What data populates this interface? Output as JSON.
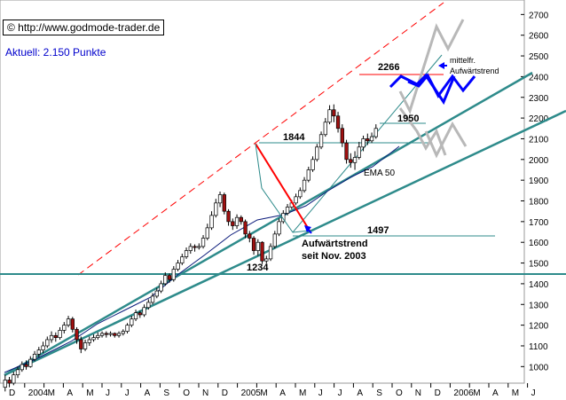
{
  "header": {
    "credit": "© http://www.godmode-trader.de",
    "aktuell": "Aktuell: 2.150 Punkte"
  },
  "chart_data": {
    "type": "candlestick",
    "yticks": [
      1000,
      1100,
      1200,
      1300,
      1400,
      1500,
      1600,
      1700,
      1800,
      1900,
      2000,
      2100,
      2200,
      2300,
      2400,
      2500,
      2600,
      2700
    ],
    "ylim": [
      920,
      2770
    ],
    "xlabels": [
      "D",
      "2004",
      "M",
      "A",
      "M",
      "J",
      "J",
      "A",
      "S",
      "O",
      "N",
      "D",
      "2005",
      "M",
      "A",
      "M",
      "J",
      "J",
      "A",
      "S",
      "O",
      "N",
      "D",
      "2006",
      "M",
      "A",
      "M",
      "J"
    ],
    "levels": [
      {
        "label": "2266",
        "value": 2266
      },
      {
        "label": "1950",
        "value": 1950
      },
      {
        "label": "1844",
        "value": 1844
      },
      {
        "label": "1497",
        "value": 1497
      },
      {
        "label": "1234",
        "value": 1234
      }
    ],
    "annotations": {
      "mittelfr": "mittelfr.",
      "aufwaertstrend_right": "Aufwärtstrend",
      "ema": "EMA 50",
      "trend_line1": "Aufwärtstrend",
      "trend_line2": "seit Nov. 2003"
    },
    "candles": [
      [
        900,
        935,
        880,
        960
      ],
      [
        935,
        920,
        900,
        950
      ],
      [
        920,
        960,
        910,
        975
      ],
      [
        960,
        985,
        945,
        1000
      ],
      [
        985,
        1010,
        975,
        1025
      ],
      [
        1010,
        1000,
        985,
        1030
      ],
      [
        1000,
        1035,
        995,
        1050
      ],
      [
        1035,
        1060,
        1025,
        1075
      ],
      [
        1060,
        1080,
        1045,
        1095
      ],
      [
        1080,
        1100,
        1065,
        1120
      ],
      [
        1100,
        1130,
        1090,
        1145
      ],
      [
        1130,
        1150,
        1115,
        1170
      ],
      [
        1150,
        1140,
        1120,
        1165
      ],
      [
        1140,
        1175,
        1130,
        1190
      ],
      [
        1175,
        1200,
        1160,
        1215
      ],
      [
        1200,
        1230,
        1190,
        1245
      ],
      [
        1230,
        1180,
        1165,
        1240
      ],
      [
        1180,
        1130,
        1110,
        1190
      ],
      [
        1130,
        1085,
        1065,
        1145
      ],
      [
        1085,
        1115,
        1075,
        1130
      ],
      [
        1115,
        1130,
        1100,
        1145
      ],
      [
        1130,
        1140,
        1120,
        1155
      ],
      [
        1140,
        1150,
        1130,
        1165
      ],
      [
        1150,
        1160,
        1140,
        1170
      ],
      [
        1160,
        1155,
        1140,
        1170
      ],
      [
        1155,
        1160,
        1145,
        1170
      ],
      [
        1160,
        1150,
        1140,
        1165
      ],
      [
        1150,
        1160,
        1140,
        1170
      ],
      [
        1160,
        1170,
        1150,
        1180
      ],
      [
        1170,
        1200,
        1160,
        1210
      ],
      [
        1200,
        1230,
        1190,
        1245
      ],
      [
        1230,
        1260,
        1220,
        1275
      ],
      [
        1260,
        1250,
        1235,
        1270
      ],
      [
        1250,
        1285,
        1240,
        1300
      ],
      [
        1285,
        1310,
        1275,
        1325
      ],
      [
        1310,
        1340,
        1300,
        1355
      ],
      [
        1340,
        1365,
        1330,
        1380
      ],
      [
        1365,
        1400,
        1355,
        1415
      ],
      [
        1400,
        1440,
        1390,
        1455
      ],
      [
        1440,
        1420,
        1405,
        1450
      ],
      [
        1420,
        1470,
        1410,
        1485
      ],
      [
        1470,
        1500,
        1460,
        1515
      ],
      [
        1500,
        1530,
        1490,
        1545
      ],
      [
        1530,
        1560,
        1520,
        1575
      ],
      [
        1560,
        1580,
        1545,
        1595
      ],
      [
        1580,
        1575,
        1555,
        1590
      ],
      [
        1575,
        1580,
        1565,
        1595
      ],
      [
        1580,
        1620,
        1570,
        1635
      ],
      [
        1620,
        1670,
        1610,
        1690
      ],
      [
        1670,
        1730,
        1660,
        1750
      ],
      [
        1730,
        1790,
        1720,
        1810
      ],
      [
        1790,
        1830,
        1770,
        1845
      ],
      [
        1830,
        1750,
        1735,
        1840
      ],
      [
        1750,
        1700,
        1680,
        1760
      ],
      [
        1700,
        1680,
        1660,
        1715
      ],
      [
        1680,
        1720,
        1665,
        1735
      ],
      [
        1720,
        1700,
        1685,
        1730
      ],
      [
        1700,
        1640,
        1620,
        1710
      ],
      [
        1640,
        1620,
        1600,
        1655
      ],
      [
        1620,
        1560,
        1540,
        1630
      ],
      [
        1560,
        1600,
        1535,
        1615
      ],
      [
        1600,
        1510,
        1495,
        1605
      ],
      [
        1510,
        1520,
        1497,
        1535
      ],
      [
        1520,
        1580,
        1510,
        1595
      ],
      [
        1580,
        1640,
        1570,
        1655
      ],
      [
        1640,
        1700,
        1630,
        1715
      ],
      [
        1700,
        1740,
        1690,
        1755
      ],
      [
        1740,
        1770,
        1730,
        1785
      ],
      [
        1770,
        1790,
        1760,
        1805
      ],
      [
        1790,
        1820,
        1780,
        1835
      ],
      [
        1820,
        1850,
        1810,
        1865
      ],
      [
        1850,
        1900,
        1840,
        1915
      ],
      [
        1900,
        1950,
        1890,
        1965
      ],
      [
        1950,
        2000,
        1940,
        2015
      ],
      [
        2000,
        2060,
        1990,
        2075
      ],
      [
        2060,
        2120,
        2050,
        2135
      ],
      [
        2120,
        2180,
        2110,
        2200
      ],
      [
        2180,
        2240,
        2170,
        2262
      ],
      [
        2240,
        2210,
        2180,
        2266
      ],
      [
        2210,
        2150,
        2130,
        2230
      ],
      [
        2150,
        2080,
        2060,
        2170
      ],
      [
        2080,
        2000,
        1980,
        2095
      ],
      [
        2000,
        1985,
        1960,
        2030
      ],
      [
        1985,
        2010,
        1950,
        2040
      ],
      [
        2010,
        2060,
        2000,
        2085
      ],
      [
        2060,
        2100,
        2040,
        2115
      ],
      [
        2100,
        2090,
        2070,
        2125
      ],
      [
        2090,
        2110,
        2080,
        2130
      ],
      [
        2110,
        2150,
        2100,
        2170
      ]
    ]
  }
}
